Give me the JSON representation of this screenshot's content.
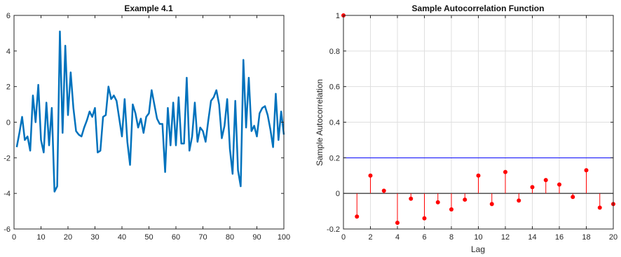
{
  "chart_data": [
    {
      "type": "line",
      "title": "Example 4.1",
      "xlabel": "",
      "ylabel": "",
      "xlim": [
        0,
        100
      ],
      "ylim": [
        -6,
        6
      ],
      "xticks": [
        0,
        10,
        20,
        30,
        40,
        50,
        60,
        70,
        80,
        90,
        100
      ],
      "yticks": [
        -6,
        -4,
        -2,
        0,
        2,
        4,
        6
      ],
      "grid": false,
      "line_color": "#0072bd",
      "x": [
        1,
        2,
        3,
        4,
        5,
        6,
        7,
        8,
        9,
        10,
        11,
        12,
        13,
        14,
        15,
        16,
        17,
        18,
        19,
        20,
        21,
        22,
        23,
        24,
        25,
        26,
        27,
        28,
        29,
        30,
        31,
        32,
        33,
        34,
        35,
        36,
        37,
        38,
        39,
        40,
        41,
        42,
        43,
        44,
        45,
        46,
        47,
        48,
        49,
        50,
        51,
        52,
        53,
        54,
        55,
        56,
        57,
        58,
        59,
        60,
        61,
        62,
        63,
        64,
        65,
        66,
        67,
        68,
        69,
        70,
        71,
        72,
        73,
        74,
        75,
        76,
        77,
        78,
        79,
        80,
        81,
        82,
        83,
        84,
        85,
        86,
        87,
        88,
        89,
        90,
        91,
        92,
        93,
        94,
        95,
        96,
        97,
        98,
        99,
        100
      ],
      "values": [
        -1.4,
        -0.6,
        0.3,
        -1.0,
        -0.8,
        -1.6,
        1.5,
        0.0,
        2.1,
        -1.0,
        -1.7,
        1.1,
        -1.3,
        0.8,
        -3.9,
        -3.6,
        5.1,
        -0.6,
        4.3,
        0.4,
        2.8,
        0.8,
        -0.5,
        -0.7,
        -0.8,
        -0.3,
        0.1,
        0.6,
        0.3,
        0.8,
        -1.7,
        -1.6,
        0.3,
        0.4,
        2.0,
        1.3,
        1.5,
        1.2,
        0.2,
        -0.8,
        1.3,
        -1.1,
        -2.4,
        1.0,
        0.5,
        -0.3,
        0.2,
        -0.6,
        0.3,
        0.5,
        1.8,
        1.0,
        0.2,
        -0.1,
        -0.1,
        -2.8,
        0.8,
        -1.3,
        1.1,
        -1.3,
        1.4,
        -1.2,
        -1.2,
        2.5,
        -1.6,
        -0.8,
        1.1,
        -1.1,
        -0.3,
        -0.5,
        -1.1,
        0.1,
        1.2,
        1.4,
        1.8,
        1.0,
        -0.9,
        -0.2,
        1.3,
        -1.5,
        -2.9,
        1.2,
        -2.7,
        -3.6,
        3.5,
        -0.3,
        2.5,
        -0.5,
        -0.2,
        -0.8,
        0.5,
        0.8,
        0.9,
        0.4,
        -0.4,
        -1.4,
        1.6,
        -1.0,
        0.6,
        -0.7
      ]
    },
    {
      "type": "stem",
      "title": "Sample Autocorrelation Function",
      "xlabel": "Lag",
      "ylabel": "Sample Autocorrelation",
      "xlim": [
        0,
        20
      ],
      "ylim": [
        -0.2,
        1
      ],
      "xticks": [
        0,
        2,
        4,
        6,
        8,
        10,
        12,
        14,
        16,
        18,
        20
      ],
      "yticks": [
        -0.2,
        0,
        0.2,
        0.4,
        0.6,
        0.8,
        1
      ],
      "grid": true,
      "stem_color": "#ff0000",
      "bounds_color": "#0000ff",
      "confidence_bounds": [
        0.2,
        -0.2
      ],
      "x": [
        0,
        1,
        2,
        3,
        4,
        5,
        6,
        7,
        8,
        9,
        10,
        11,
        12,
        13,
        14,
        15,
        16,
        17,
        18,
        19,
        20
      ],
      "values": [
        1.0,
        -0.13,
        0.1,
        0.015,
        -0.165,
        -0.03,
        -0.14,
        -0.05,
        -0.09,
        -0.035,
        0.1,
        -0.06,
        0.12,
        -0.04,
        0.035,
        0.075,
        0.05,
        -0.02,
        0.13,
        -0.08,
        -0.06
      ]
    }
  ]
}
